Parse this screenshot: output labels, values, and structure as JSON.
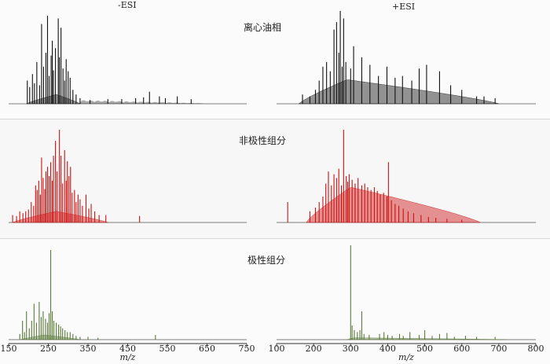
{
  "chart_data": {
    "type": "mass-spectrum",
    "modes": [
      "-ESI",
      "+ESI"
    ],
    "panels": [
      {
        "mode": "-ESI",
        "xlim": [
          150,
          750
        ]
      },
      {
        "mode": "+ESI",
        "xlim": [
          100,
          800
        ]
      }
    ],
    "x_ticks": {
      "-ESI": [
        150,
        250,
        350,
        450,
        550,
        650,
        750
      ],
      "+ESI": [
        100,
        200,
        300,
        400,
        500,
        600,
        700,
        800
      ]
    },
    "xlabel": "m/z",
    "rows": [
      {
        "label": "离心油相",
        "color": "#111111",
        "-ESI": {
          "envelope_start": 195,
          "envelope_peak": 270,
          "envelope_end": 330,
          "envelope_height": 0.1,
          "tail_start": 330,
          "tail_end": 640,
          "tail_height": 0.04,
          "peaks": [
            [
              197,
              0.25
            ],
            [
              203,
              0.18
            ],
            [
              210,
              0.32
            ],
            [
              215,
              0.22
            ],
            [
              221,
              0.45
            ],
            [
              228,
              0.2
            ],
            [
              233,
              0.86
            ],
            [
              238,
              0.4
            ],
            [
              244,
              0.55
            ],
            [
              248,
              0.95
            ],
            [
              252,
              0.3
            ],
            [
              257,
              0.52
            ],
            [
              260,
              0.68
            ],
            [
              263,
              0.36
            ],
            [
              268,
              0.6
            ],
            [
              275,
              0.92
            ],
            [
              278,
              0.5
            ],
            [
              282,
              0.82
            ],
            [
              287,
              0.38
            ],
            [
              291,
              0.25
            ],
            [
              295,
              0.48
            ],
            [
              300,
              0.35
            ],
            [
              305,
              0.28
            ],
            [
              312,
              0.15
            ],
            [
              320,
              0.1
            ],
            [
              330,
              0.06
            ],
            [
              355,
              0.04
            ],
            [
              400,
              0.05
            ],
            [
              435,
              0.05
            ],
            [
              470,
              0.06
            ],
            [
              490,
              0.07
            ],
            [
              505,
              0.13
            ],
            [
              530,
              0.08
            ],
            [
              545,
              0.06
            ],
            [
              575,
              0.08
            ],
            [
              610,
              0.05
            ]
          ]
        },
        "+ESI": {
          "envelope_start": 160,
          "envelope_peak": 290,
          "envelope_end": 700,
          "envelope_height": 0.26,
          "peaks": [
            [
              170,
              0.1
            ],
            [
              190,
              0.08
            ],
            [
              205,
              0.15
            ],
            [
              215,
              0.25
            ],
            [
              225,
              0.4
            ],
            [
              235,
              0.45
            ],
            [
              245,
              0.35
            ],
            [
              255,
              0.8
            ],
            [
              262,
              0.88
            ],
            [
              268,
              0.55
            ],
            [
              272,
              1.0
            ],
            [
              277,
              0.4
            ],
            [
              281,
              0.92
            ],
            [
              287,
              0.45
            ],
            [
              300,
              0.38
            ],
            [
              308,
              0.62
            ],
            [
              330,
              0.5
            ],
            [
              352,
              0.42
            ],
            [
              375,
              0.3
            ],
            [
              398,
              0.4
            ],
            [
              420,
              0.28
            ],
            [
              440,
              0.3
            ],
            [
              465,
              0.25
            ],
            [
              485,
              0.38
            ],
            [
              505,
              0.42
            ],
            [
              540,
              0.35
            ],
            [
              570,
              0.2
            ],
            [
              600,
              0.15
            ],
            [
              640,
              0.08
            ],
            [
              660,
              0.08
            ],
            [
              690,
              0.06
            ]
          ]
        }
      },
      {
        "label": "非极性组分",
        "color": "#cc1111",
        "-ESI": {
          "envelope_start": 160,
          "envelope_peak": 270,
          "envelope_end": 400,
          "envelope_height": 0.12,
          "peaks": [
            [
              160,
              0.08
            ],
            [
              170,
              0.07
            ],
            [
              178,
              0.12
            ],
            [
              186,
              0.1
            ],
            [
              193,
              0.12
            ],
            [
              200,
              0.14
            ],
            [
              207,
              0.22
            ],
            [
              213,
              0.18
            ],
            [
              218,
              0.4
            ],
            [
              222,
              0.35
            ],
            [
              226,
              0.45
            ],
            [
              230,
              0.3
            ],
            [
              233,
              0.7
            ],
            [
              237,
              0.48
            ],
            [
              241,
              0.36
            ],
            [
              244,
              0.55
            ],
            [
              248,
              0.6
            ],
            [
              252,
              0.5
            ],
            [
              256,
              0.65
            ],
            [
              260,
              0.45
            ],
            [
              263,
              0.72
            ],
            [
              268,
              0.88
            ],
            [
              272,
              0.55
            ],
            [
              278,
              1.0
            ],
            [
              282,
              0.72
            ],
            [
              286,
              0.42
            ],
            [
              291,
              0.78
            ],
            [
              295,
              0.45
            ],
            [
              298,
              0.66
            ],
            [
              302,
              0.5
            ],
            [
              306,
              0.6
            ],
            [
              310,
              0.32
            ],
            [
              316,
              0.35
            ],
            [
              320,
              0.22
            ],
            [
              325,
              0.3
            ],
            [
              330,
              0.25
            ],
            [
              336,
              0.18
            ],
            [
              345,
              0.3
            ],
            [
              352,
              0.15
            ],
            [
              358,
              0.2
            ],
            [
              367,
              0.12
            ],
            [
              378,
              0.08
            ],
            [
              395,
              0.08
            ],
            [
              480,
              0.07
            ]
          ]
        },
        "+ESI": {
          "envelope_start": 180,
          "envelope_peak": 300,
          "envelope_end": 650,
          "envelope_height": 0.38,
          "peaks": [
            [
              130,
              0.22
            ],
            [
              190,
              0.12
            ],
            [
              205,
              0.16
            ],
            [
              215,
              0.22
            ],
            [
              225,
              0.28
            ],
            [
              233,
              0.42
            ],
            [
              240,
              0.55
            ],
            [
              248,
              0.4
            ],
            [
              255,
              0.52
            ],
            [
              262,
              0.48
            ],
            [
              268,
              0.58
            ],
            [
              275,
              0.4
            ],
            [
              281,
              1.0
            ],
            [
              288,
              0.5
            ],
            [
              292,
              0.44
            ],
            [
              296,
              0.52
            ],
            [
              304,
              0.46
            ],
            [
              312,
              0.42
            ],
            [
              320,
              0.48
            ],
            [
              330,
              0.4
            ],
            [
              338,
              0.42
            ],
            [
              346,
              0.38
            ],
            [
              355,
              0.35
            ],
            [
              364,
              0.38
            ],
            [
              372,
              0.34
            ],
            [
              380,
              0.3
            ],
            [
              389,
              0.32
            ],
            [
              398,
              0.28
            ],
            [
              402,
              0.65
            ],
            [
              410,
              0.24
            ],
            [
              420,
              0.2
            ],
            [
              430,
              0.18
            ],
            [
              442,
              0.15
            ],
            [
              455,
              0.12
            ],
            [
              470,
              0.1
            ],
            [
              490,
              0.08
            ],
            [
              510,
              0.06
            ],
            [
              530,
              0.05
            ],
            [
              560,
              0.04
            ],
            [
              600,
              0.03
            ]
          ]
        }
      },
      {
        "label": "极性组分",
        "color": "#5a7a3a",
        "-ESI": {
          "envelope_start": 180,
          "envelope_peak": 240,
          "envelope_end": 330,
          "envelope_height": 0.05,
          "peaks": [
            [
              178,
              0.06
            ],
            [
              185,
              0.2
            ],
            [
              190,
              0.08
            ],
            [
              195,
              0.3
            ],
            [
              202,
              0.12
            ],
            [
              208,
              0.2
            ],
            [
              214,
              0.38
            ],
            [
              220,
              0.18
            ],
            [
              227,
              0.4
            ],
            [
              232,
              0.24
            ],
            [
              237,
              0.3
            ],
            [
              243,
              0.22
            ],
            [
              248,
              0.18
            ],
            [
              252,
              0.28
            ],
            [
              256,
              0.95
            ],
            [
              260,
              0.3
            ],
            [
              264,
              0.2
            ],
            [
              270,
              0.18
            ],
            [
              276,
              0.16
            ],
            [
              281,
              0.14
            ],
            [
              286,
              0.12
            ],
            [
              292,
              0.1
            ],
            [
              298,
              0.08
            ],
            [
              305,
              0.08
            ],
            [
              312,
              0.06
            ],
            [
              320,
              0.04
            ],
            [
              330,
              0.03
            ],
            [
              350,
              0.03
            ],
            [
              375,
              0.02
            ],
            [
              520,
              0.05
            ]
          ]
        },
        "+ESI": {
          "envelope_start": 290,
          "envelope_peak": 310,
          "envelope_end": 720,
          "envelope_height": 0.02,
          "peaks": [
            [
              300,
              1.0
            ],
            [
              304,
              0.15
            ],
            [
              310,
              0.1
            ],
            [
              318,
              0.08
            ],
            [
              325,
              0.1
            ],
            [
              330,
              0.3
            ],
            [
              336,
              0.06
            ],
            [
              350,
              0.05
            ],
            [
              378,
              0.06
            ],
            [
              390,
              0.08
            ],
            [
              400,
              0.05
            ],
            [
              412,
              0.04
            ],
            [
              432,
              0.06
            ],
            [
              442,
              0.04
            ],
            [
              460,
              0.08
            ],
            [
              485,
              0.05
            ],
            [
              500,
              0.1
            ],
            [
              520,
              0.04
            ],
            [
              540,
              0.06
            ],
            [
              560,
              0.07
            ],
            [
              580,
              0.03
            ],
            [
              610,
              0.04
            ],
            [
              640,
              0.03
            ],
            [
              690,
              0.03
            ]
          ]
        }
      }
    ]
  }
}
